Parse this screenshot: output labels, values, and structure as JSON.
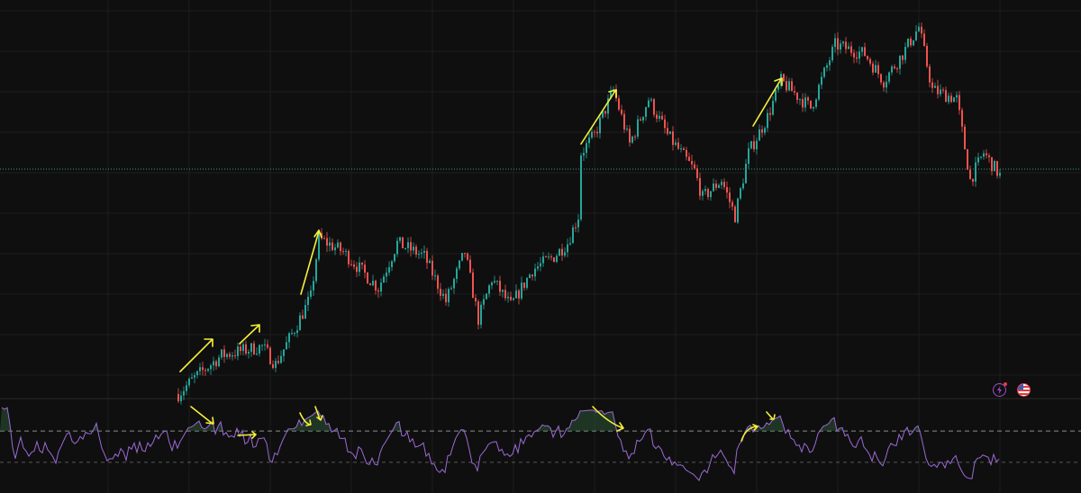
{
  "chart_data": [
    {
      "type": "candlestick",
      "title": "",
      "xlabel": "",
      "ylabel": "",
      "price_path": [
        [
          0,
          62
        ],
        [
          6,
          80
        ],
        [
          16,
          105
        ],
        [
          31,
          115
        ],
        [
          36,
          95
        ],
        [
          44,
          140
        ],
        [
          49,
          170
        ],
        [
          52,
          235
        ],
        [
          61,
          220
        ],
        [
          74,
          180
        ],
        [
          81,
          230
        ],
        [
          91,
          215
        ],
        [
          99,
          165
        ],
        [
          106,
          220
        ],
        [
          111,
          145
        ],
        [
          116,
          190
        ],
        [
          123,
          160
        ],
        [
          131,
          200
        ],
        [
          139,
          215
        ],
        [
          144,
          230
        ],
        [
          148,
          260
        ],
        [
          149,
          330
        ],
        [
          154,
          350
        ],
        [
          161,
          400
        ],
        [
          167,
          340
        ],
        [
          174,
          390
        ],
        [
          181,
          350
        ],
        [
          191,
          310
        ],
        [
          194,
          280
        ],
        [
          201,
          300
        ],
        [
          206,
          260
        ],
        [
          211,
          330
        ],
        [
          218,
          370
        ],
        [
          223,
          410
        ],
        [
          234,
          380
        ],
        [
          243,
          450
        ],
        [
          254,
          440
        ],
        [
          261,
          410
        ],
        [
          268,
          440
        ],
        [
          274,
          470
        ],
        [
          279,
          400
        ],
        [
          288,
          390
        ],
        [
          293,
          300
        ],
        [
          298,
          330
        ],
        [
          304,
          305
        ]
      ],
      "last_price_line": 312,
      "grid": true,
      "colors": {
        "up": "#26a69a",
        "down": "#ef5350",
        "background": "#0f0f0f",
        "grid": "#1e1e1e",
        "last_price": "#26a69a"
      }
    },
    {
      "type": "line",
      "title": "",
      "indicator": "RSI",
      "levels": [
        70,
        30
      ],
      "ylim": [
        0,
        100
      ],
      "colors": {
        "line": "#9c6ad6",
        "overbought_fill": "#2e5b3a",
        "level": "#9e9e9e"
      }
    }
  ],
  "annotations": {
    "color": "#f5f03a"
  },
  "toolbar_icons": [
    {
      "name": "lightning-icon",
      "color": "#9c4dcc",
      "badge": "#f23645"
    },
    {
      "name": "us-flag-icon",
      "color": "#f23645"
    }
  ]
}
